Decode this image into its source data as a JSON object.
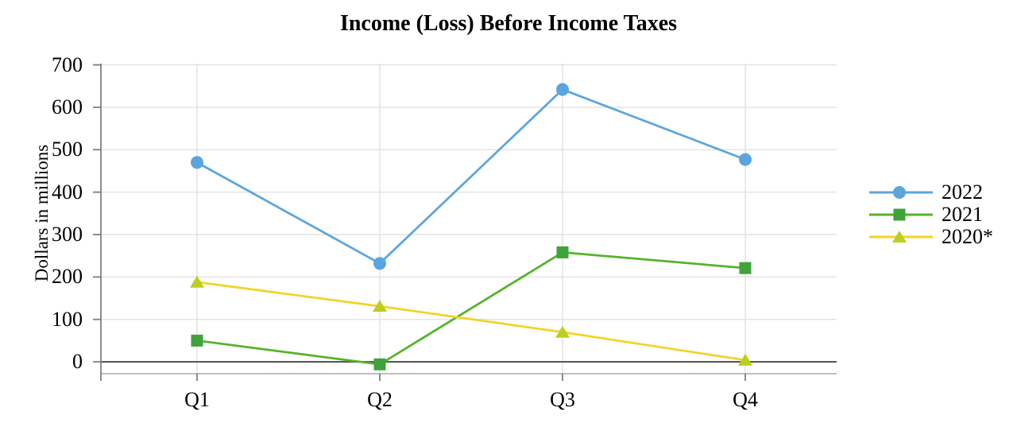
{
  "chart": {
    "title": "Income (Loss) Before Income Taxes",
    "y_axis_title": "Dollars in millions"
  },
  "chart_data": {
    "type": "line",
    "title": "Income (Loss) Before Income Taxes",
    "xlabel": "",
    "ylabel": "Dollars in millions",
    "categories": [
      "Q1",
      "Q2",
      "Q3",
      "Q4"
    ],
    "series": [
      {
        "name": "2022",
        "marker": "circle",
        "color": "#5BA5DE",
        "marker_color": "#5BA5DE",
        "values": [
          470,
          232,
          642,
          477
        ]
      },
      {
        "name": "2021",
        "marker": "square",
        "color": "#55B32B",
        "marker_color": "#3EA33B",
        "values": [
          50,
          -6,
          258,
          221
        ]
      },
      {
        "name": "2020*",
        "marker": "triangle",
        "color": "#F4D327",
        "marker_color": "#BDCE1F",
        "values": [
          188,
          131,
          70,
          4
        ]
      }
    ],
    "yticks": [
      0,
      100,
      200,
      300,
      400,
      500,
      600,
      700
    ],
    "ylim": [
      -28,
      703
    ],
    "grid": true,
    "legend_position": "right",
    "zero_line": true
  },
  "colors": {
    "background": "#FFFFFF",
    "gridline": "#E2E2E2",
    "axis_line": "#7F7F7F",
    "zero_line": "#595959",
    "plot_border": "#A8A8A8",
    "text": "#000000"
  }
}
